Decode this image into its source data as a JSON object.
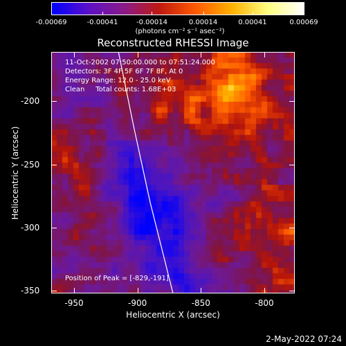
{
  "colorbar": {
    "ticks": [
      "-0.00069",
      "-0.00041",
      "-0.00014",
      "0.00014",
      "0.00041",
      "0.00069"
    ],
    "tick_values": [
      -0.00069,
      -0.00041,
      -0.00014,
      0.00014,
      0.00041,
      0.00069
    ],
    "range": [
      -0.00069,
      0.00069
    ],
    "unit": "(photons cm⁻² s⁻¹ asec⁻²)",
    "colors": [
      "#0000ff",
      "#5b10c8",
      "#8a1a8a",
      "#c01a10",
      "#ff5a00",
      "#ffb000",
      "#ffff80",
      "#ffffff"
    ]
  },
  "info": {
    "time": "11-Oct-2002 07:50:00.000 to 07:51:24.000",
    "detectors": "Detectors: 3F 4F 5F 6F 7F 8F, At 0",
    "energy": "Energy Range: 12.0 - 25.0 keV",
    "method": "Clean     Total counts: 1.68E+03",
    "peak": "Position of Peak = [-829,-191]"
  },
  "chart_data": {
    "type": "heatmap",
    "title": "Reconstructed RHESSI Image",
    "xlabel": "Heliocentric X (arcsec)",
    "ylabel": "Heliocentric Y (arcsec)",
    "xlim": [
      -968,
      -776
    ],
    "ylim": [
      -352,
      -161
    ],
    "xticks": [
      "-950",
      "-900",
      "-850",
      "-800"
    ],
    "xtick_values": [
      -950,
      -900,
      -850,
      -800
    ],
    "yticks": [
      "-200",
      "-250",
      "-300",
      "-350"
    ],
    "ytick_values": [
      -200,
      -250,
      -300,
      -350
    ],
    "peak_position": [
      -829,
      -191
    ],
    "limb_curve": {
      "x": [
        -915,
        -903,
        -890,
        -880,
        -872
      ],
      "y": [
        -161,
        -220,
        -280,
        -320,
        -352
      ]
    },
    "grid": false,
    "colorbar_position": "top"
  },
  "footer": {
    "date": "2-May-2022 07:24"
  }
}
